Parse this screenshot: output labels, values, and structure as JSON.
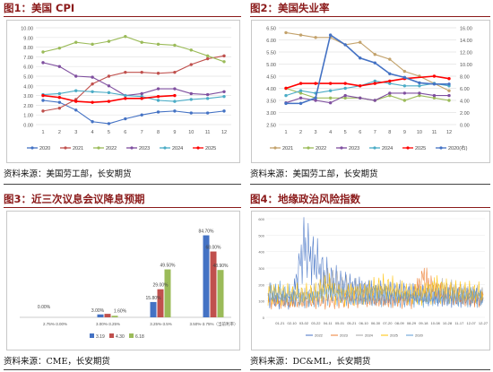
{
  "colors": {
    "accent": "#8b1a1a",
    "s2020": "#4472c4",
    "s2021": "#c0504d",
    "s2022": "#9bbb59",
    "s2023": "#7f4f9f",
    "s2024": "#4bacc6",
    "s2025": "#ff0000",
    "loss": "#c3a26b"
  },
  "panels": [
    {
      "title": "图1：美国 CPI",
      "source": "资料来源：美国劳工部，长安期货"
    },
    {
      "title": "图2：美国失业率",
      "source": "资料来源：美国劳工部，长安期货"
    },
    {
      "title": "图3：近三次议息会议降息预期",
      "source": "资料来源：CME，长安期货"
    },
    {
      "title": "图4：地缘政治风险指数",
      "source": "资料来源：DC&ML，长安期货"
    }
  ],
  "chart_data": [
    {
      "type": "line",
      "title": "",
      "x": [
        "1",
        "2",
        "3",
        "4",
        "5",
        "6",
        "7",
        "8",
        "9",
        "10",
        "11",
        "12"
      ],
      "yticks": [
        "0.00",
        "1.00",
        "2.00",
        "3.00",
        "4.00",
        "5.00",
        "6.00",
        "7.00",
        "8.00",
        "9.00",
        "10.00"
      ],
      "ylim": [
        0,
        10
      ],
      "series": [
        {
          "name": "2020",
          "values": [
            2.5,
            2.3,
            1.5,
            0.3,
            0.1,
            0.6,
            1.0,
            1.3,
            1.4,
            1.2,
            1.2,
            1.4
          ]
        },
        {
          "name": "2021",
          "values": [
            1.4,
            1.7,
            2.6,
            4.2,
            5.0,
            5.4,
            5.4,
            5.3,
            5.4,
            6.2,
            6.8,
            7.1
          ]
        },
        {
          "name": "2022",
          "values": [
            7.5,
            7.9,
            8.5,
            8.3,
            8.6,
            9.1,
            8.5,
            8.3,
            8.2,
            7.7,
            7.1,
            6.5
          ]
        },
        {
          "name": "2023",
          "values": [
            6.4,
            6.0,
            5.0,
            4.9,
            4.0,
            3.0,
            3.2,
            3.7,
            3.7,
            3.2,
            3.1,
            3.4
          ]
        },
        {
          "name": "2024",
          "values": [
            3.1,
            3.2,
            3.5,
            3.4,
            3.3,
            3.0,
            2.9,
            2.5,
            2.4,
            2.6,
            2.7,
            2.9
          ]
        },
        {
          "name": "2025",
          "values": [
            3.0,
            2.8,
            2.4,
            2.3,
            2.4,
            2.7,
            2.7,
            2.9,
            3.0,
            null,
            null,
            null
          ]
        }
      ]
    },
    {
      "type": "line",
      "title": "",
      "x": [
        "1",
        "2",
        "3",
        "4",
        "5",
        "6",
        "7",
        "8",
        "9",
        "10",
        "11",
        "12"
      ],
      "yticks": [
        "2.50",
        "3.00",
        "3.50",
        "4.00",
        "4.50",
        "5.00",
        "5.50",
        "6.00",
        "6.50"
      ],
      "ylim": [
        2.5,
        6.5
      ],
      "y2ticks": [
        "0.00",
        "2.00",
        "4.00",
        "6.00",
        "8.00",
        "10.00",
        "12.00",
        "14.00",
        "16.00"
      ],
      "y2lim": [
        0,
        16
      ],
      "series": [
        {
          "name": "2021",
          "values": [
            6.3,
            6.2,
            6.1,
            6.1,
            5.8,
            5.9,
            5.4,
            5.2,
            4.7,
            4.5,
            4.2,
            3.9
          ]
        },
        {
          "name": "2022",
          "values": [
            4.0,
            3.8,
            3.6,
            3.6,
            3.6,
            3.6,
            3.5,
            3.7,
            3.5,
            3.7,
            3.6,
            3.5
          ]
        },
        {
          "name": "2023",
          "values": [
            3.4,
            3.6,
            3.5,
            3.4,
            3.7,
            3.6,
            3.5,
            3.8,
            3.8,
            3.8,
            3.7,
            3.7
          ]
        },
        {
          "name": "2024",
          "values": [
            3.7,
            3.9,
            3.8,
            3.9,
            4.0,
            4.1,
            4.3,
            4.2,
            4.1,
            4.1,
            4.2,
            4.1
          ]
        },
        {
          "name": "2025",
          "values": [
            4.0,
            4.2,
            4.2,
            4.2,
            4.2,
            4.1,
            4.2,
            4.3,
            4.4,
            null,
            4.5,
            4.4
          ]
        },
        {
          "name": "2020(右)",
          "axis": "right",
          "values": [
            3.5,
            3.5,
            4.4,
            14.8,
            13.2,
            11.0,
            10.2,
            8.4,
            7.8,
            6.9,
            6.7,
            6.7
          ]
        }
      ]
    },
    {
      "type": "bar",
      "title": "",
      "categories": [
        "2.75%-3.00%",
        "3.00%-3.25%",
        "3.25%-3.5%",
        "3.50%-3.75%（当前利率）"
      ],
      "ylim": [
        0,
        100
      ],
      "series": [
        {
          "name": "3.19",
          "values": [
            0.0,
            3.0,
            15.8,
            84.7
          ]
        },
        {
          "name": "4.30",
          "values": [
            0,
            3.6,
            29.0,
            68.0
          ]
        },
        {
          "name": "6.18",
          "values": [
            0,
            1.6,
            49.5,
            48.9
          ]
        }
      ],
      "data_labels": [
        "0.00%",
        "3.00%",
        "1.60%",
        "15.80%",
        "29.00%",
        "49.50%",
        "84.70%",
        "68.00%",
        "48.90%"
      ]
    },
    {
      "type": "line",
      "title": "",
      "x": [
        "01-01",
        "01-21",
        "02-10",
        "03-02",
        "03-22",
        "04-11",
        "05-01",
        "05-21",
        "06-10",
        "06-30",
        "07-20",
        "08-09",
        "08-29",
        "09-18",
        "10-08",
        "10-28",
        "11-17",
        "12-07",
        "12-27"
      ],
      "xticks": [
        "01-21",
        "02-10",
        "03-02",
        "03-22",
        "04-11",
        "05-01",
        "05-21",
        "06-10",
        "06-30",
        "07-20",
        "08-09",
        "08-29",
        "09-18",
        "10-08",
        "10-28",
        "11-17",
        "12-07",
        "12-27"
      ],
      "yticks": [
        "0",
        "100",
        "200",
        "300",
        "400",
        "500",
        "600"
      ],
      "ylim": [
        0,
        600
      ],
      "series": [
        {
          "name": "2022",
          "values": [
            110,
            105,
            100,
            430,
            330,
            230,
            200,
            180,
            170,
            160,
            150,
            140,
            135,
            130,
            130,
            125,
            125,
            120,
            118
          ]
        },
        {
          "name": "2023",
          "values": [
            100,
            95,
            90,
            95,
            100,
            100,
            105,
            110,
            110,
            105,
            100,
            105,
            110,
            240,
            150,
            130,
            120,
            110,
            108
          ]
        },
        {
          "name": "2024",
          "values": [
            140,
            125,
            120,
            130,
            145,
            210,
            180,
            160,
            150,
            140,
            150,
            155,
            135,
            130,
            150,
            165,
            150,
            140,
            135
          ]
        },
        {
          "name": "2025",
          "values": [
            150,
            145,
            140,
            135,
            140,
            190,
            135,
            150,
            145,
            170,
            175,
            150,
            140,
            145,
            185,
            160,
            150,
            145,
            140
          ]
        },
        {
          "name": "2020",
          "values": [
            140,
            145,
            130,
            110,
            120,
            150,
            130,
            110,
            120,
            130,
            125,
            115,
            120,
            110,
            115,
            125,
            120,
            130,
            125
          ]
        }
      ]
    }
  ]
}
